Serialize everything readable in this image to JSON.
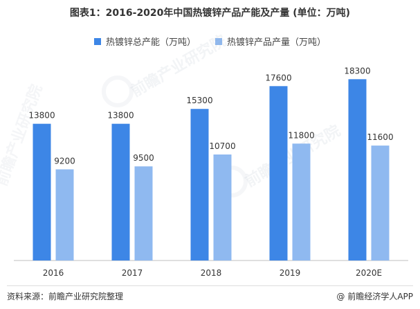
{
  "title": "图表1：2016-2020年中国热镀锌产品产能及产量 (单位：万吨)",
  "watermark_text": "前瞻产业研究院",
  "colors": {
    "capacity": "#3d86e6",
    "output": "#8fb9f0",
    "axis": "#bfbfbf",
    "label": "#333333"
  },
  "chart_data": {
    "type": "bar",
    "title": "图表1：2016-2020年中国热镀锌产品产能及产量 (单位：万吨)",
    "categories": [
      "2016",
      "2017",
      "2018",
      "2019",
      "2020E"
    ],
    "series": [
      {
        "name": "热镀锌总产能（万吨）",
        "values": [
          13800,
          13800,
          15300,
          17600,
          18300
        ]
      },
      {
        "name": "热镀锌产品产量（万吨）",
        "values": [
          9200,
          9500,
          10700,
          11800,
          11600
        ]
      }
    ],
    "ylim": [
      0,
      20000
    ],
    "xlabel": "",
    "ylabel": "",
    "grid": false,
    "legend_position": "top"
  },
  "footer": {
    "source": "资料来源：前瞻产业研究院整理",
    "brand_icon": "@",
    "brand": "前瞻经济学人APP"
  }
}
